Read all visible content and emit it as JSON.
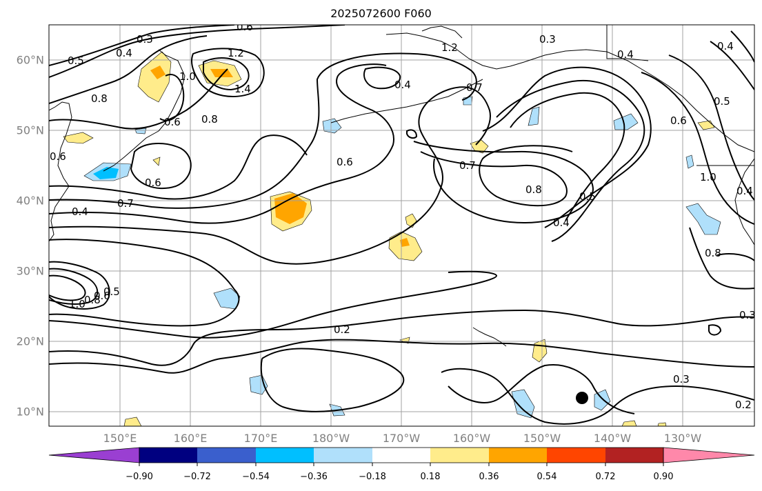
{
  "title": "2025072600 F060",
  "lat_labels": [
    "60°N",
    "50°N",
    "40°N",
    "30°N",
    "20°N",
    "10°N"
  ],
  "lon_labels": [
    "150°E",
    "160°E",
    "170°E",
    "180°W",
    "170°W",
    "160°W",
    "150°W",
    "140°W",
    "130°W"
  ],
  "contour_labels": [
    "0.3",
    "0.6",
    "0.4",
    "0.5",
    "1.2",
    "1.0",
    "1.4",
    "0.8",
    "0.6",
    "0.8",
    "0.6",
    "0.6",
    "0.7",
    "0.4",
    "0.4",
    "0.6",
    "0.7",
    "0.8",
    "0.5",
    "0.4",
    "0.3",
    "0.4",
    "0.5",
    "0.6",
    "1.0",
    "0.4",
    "0.8",
    "0.4",
    "0.2",
    "0.3",
    "0.2",
    "1.0",
    "0.8",
    "0.6",
    "0.5",
    "1.2",
    "0.3",
    "0.7"
  ],
  "colorbar": {
    "tick_labels": [
      "−0.90",
      "−0.72",
      "−0.54",
      "−0.36",
      "−0.18",
      "0.18",
      "0.36",
      "0.54",
      "0.72",
      "0.90"
    ],
    "colors": [
      "#9a3fd2",
      "#000080",
      "#3a5fcd",
      "#00bfff",
      "#b0e0fb",
      "#ffffff",
      "#ffec8b",
      "#ffa500",
      "#ff4500",
      "#b22222",
      "#ff88aa"
    ]
  },
  "marker": {
    "name": "black-dot"
  }
}
